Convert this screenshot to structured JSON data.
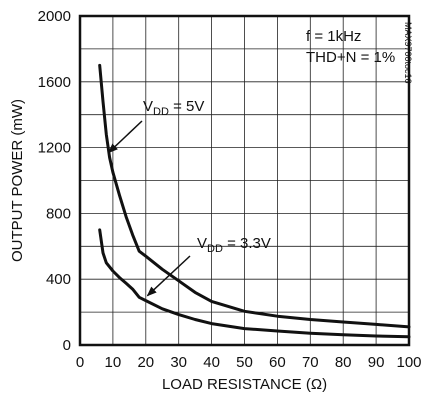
{
  "chart_data": {
    "type": "line",
    "xlabel": "LOAD RESISTANCE (Ω)",
    "ylabel": "OUTPUT POWER (mW)",
    "xlim": [
      0,
      100
    ],
    "ylim": [
      0,
      2000
    ],
    "x_ticks": [
      0,
      10,
      20,
      30,
      40,
      50,
      60,
      70,
      80,
      90,
      100
    ],
    "y_ticks": [
      0,
      400,
      800,
      1200,
      1600,
      2000
    ],
    "x_grid_step": 10,
    "y_grid_step": 200,
    "grid": true,
    "conditions": [
      "f = 1kHz",
      "THD+N = 1%"
    ],
    "side_label": "MAX9700toc16",
    "series": [
      {
        "name": "VDD = 5V",
        "label_main": "V",
        "label_sub": "DD",
        "label_rest": " = 5V",
        "x": [
          6,
          7,
          8,
          9,
          10,
          12,
          14,
          16,
          18,
          20,
          25,
          30,
          35,
          40,
          50,
          60,
          70,
          80,
          90,
          100
        ],
        "y": [
          1700,
          1480,
          1280,
          1140,
          1050,
          910,
          780,
          670,
          570,
          540,
          460,
          390,
          320,
          265,
          205,
          175,
          155,
          140,
          125,
          110
        ]
      },
      {
        "name": "VDD = 3.3V",
        "label_main": "V",
        "label_sub": "DD",
        "label_rest": " = 3.3V",
        "x": [
          6,
          7,
          8,
          10,
          12,
          14,
          16,
          18,
          20,
          25,
          30,
          35,
          40,
          50,
          60,
          70,
          80,
          90,
          100
        ],
        "y": [
          700,
          560,
          500,
          450,
          410,
          375,
          340,
          290,
          270,
          220,
          185,
          155,
          130,
          100,
          85,
          72,
          62,
          55,
          50
        ]
      }
    ]
  }
}
